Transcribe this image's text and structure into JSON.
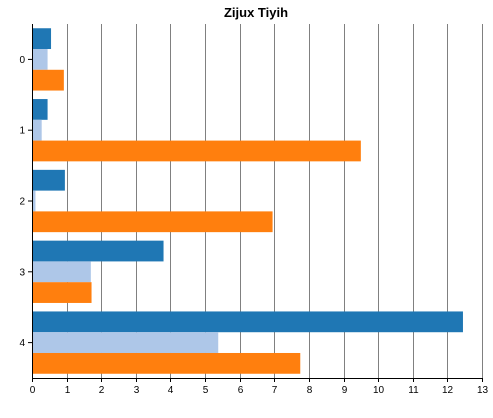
{
  "chart_data": {
    "type": "bar",
    "orientation": "horizontal",
    "title": "Zijux Tiyih",
    "xlabel": "",
    "ylabel": "",
    "categories": [
      "0",
      "1",
      "2",
      "3",
      "4"
    ],
    "xlim": [
      0,
      13
    ],
    "xticks": [
      "0",
      "1",
      "2",
      "3",
      "4",
      "5",
      "6",
      "7",
      "8",
      "9",
      "10",
      "11",
      "12",
      "13"
    ],
    "grid": true,
    "legend": "none",
    "series": [
      {
        "values": [
          0.55,
          0.45,
          0.95,
          3.8,
          12.45
        ],
        "color": "#1f77b4"
      },
      {
        "values": [
          0.45,
          0.28,
          0.1,
          1.7,
          5.38
        ],
        "color": "#aec7e8"
      },
      {
        "values": [
          0.92,
          9.5,
          6.95,
          1.72,
          7.75
        ],
        "color": "#ff7f0e"
      }
    ]
  }
}
